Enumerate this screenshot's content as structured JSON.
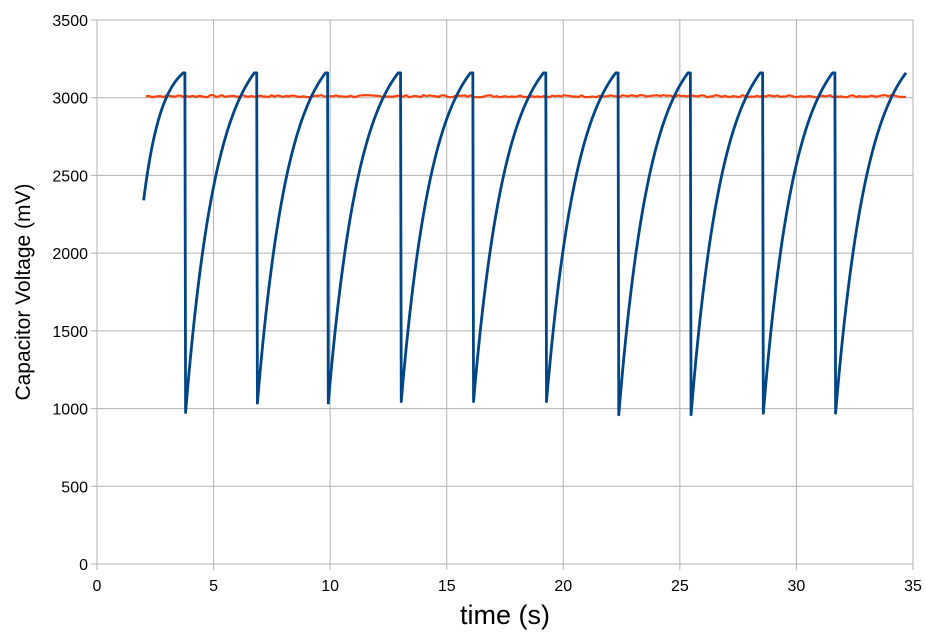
{
  "chart_data": {
    "type": "line",
    "title": "",
    "xlabel": "time (s)",
    "ylabel": "Capacitor Voltage (mV)",
    "xlim": [
      0,
      35
    ],
    "ylim": [
      0,
      3500
    ],
    "xticks": [
      0,
      5,
      10,
      15,
      20,
      25,
      30,
      35
    ],
    "yticks": [
      0,
      500,
      1000,
      1500,
      2000,
      2500,
      3000,
      3500
    ],
    "grid": true,
    "legend": "none",
    "series": [
      {
        "color": "#004586",
        "start": {
          "x": 2.0,
          "y": 2340
        },
        "cycles": [
          {
            "peak_x": 3.7,
            "peak_y": 3160,
            "drop_x": 3.8,
            "min_y": 975
          },
          {
            "peak_x": 6.75,
            "peak_y": 3160,
            "drop_x": 6.88,
            "min_y": 1035
          },
          {
            "peak_x": 9.8,
            "peak_y": 3160,
            "drop_x": 9.92,
            "min_y": 1035
          },
          {
            "peak_x": 12.92,
            "peak_y": 3160,
            "drop_x": 13.05,
            "min_y": 1045
          },
          {
            "peak_x": 16.02,
            "peak_y": 3160,
            "drop_x": 16.15,
            "min_y": 1045
          },
          {
            "peak_x": 19.15,
            "peak_y": 3160,
            "drop_x": 19.28,
            "min_y": 1045
          },
          {
            "peak_x": 22.25,
            "peak_y": 3160,
            "drop_x": 22.38,
            "min_y": 960
          },
          {
            "peak_x": 25.35,
            "peak_y": 3160,
            "drop_x": 25.48,
            "min_y": 960
          },
          {
            "peak_x": 28.45,
            "peak_y": 3160,
            "drop_x": 28.58,
            "min_y": 970
          },
          {
            "peak_x": 31.55,
            "peak_y": 3160,
            "drop_x": 31.68,
            "min_y": 970
          }
        ],
        "end": {
          "x": 34.7,
          "y": 3160
        }
      },
      {
        "color": "#ff420e",
        "x": [
          2.1,
          34.7
        ],
        "values": [
          3010,
          3010
        ]
      }
    ]
  }
}
